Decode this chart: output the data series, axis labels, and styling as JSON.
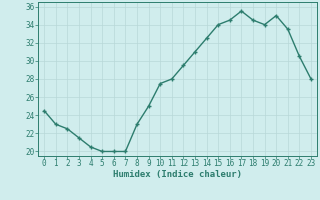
{
  "x": [
    0,
    1,
    2,
    3,
    4,
    5,
    6,
    7,
    8,
    9,
    10,
    11,
    12,
    13,
    14,
    15,
    16,
    17,
    18,
    19,
    20,
    21,
    22,
    23
  ],
  "y": [
    24.5,
    23.0,
    22.5,
    21.5,
    20.5,
    20.0,
    20.0,
    20.0,
    23.0,
    25.0,
    27.5,
    28.0,
    29.5,
    31.0,
    32.5,
    34.0,
    34.5,
    35.5,
    34.5,
    34.0,
    35.0,
    33.5,
    30.5,
    28.0
  ],
  "line_color": "#2d7d6e",
  "marker": "+",
  "marker_size": 3.5,
  "title": "",
  "xlabel": "Humidex (Indice chaleur)",
  "ylabel": "",
  "xlim": [
    -0.5,
    23.5
  ],
  "ylim": [
    19.5,
    36.5
  ],
  "yticks": [
    20,
    22,
    24,
    26,
    28,
    30,
    32,
    34,
    36
  ],
  "xticks": [
    0,
    1,
    2,
    3,
    4,
    5,
    6,
    7,
    8,
    9,
    10,
    11,
    12,
    13,
    14,
    15,
    16,
    17,
    18,
    19,
    20,
    21,
    22,
    23
  ],
  "background_color": "#d0eded",
  "grid_color": "#b8d8d8",
  "tick_fontsize": 5.5,
  "xlabel_fontsize": 6.5,
  "line_width": 1.0,
  "marker_edge_width": 1.0
}
